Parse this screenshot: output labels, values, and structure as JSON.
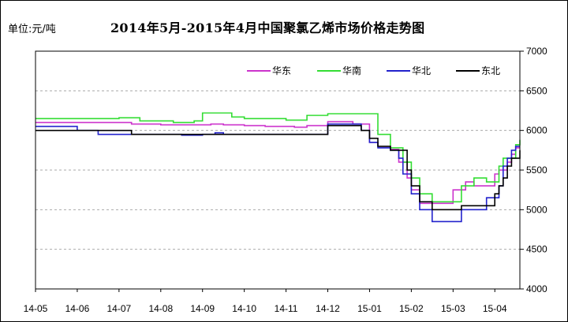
{
  "unit_label": "单位:元/吨",
  "chart_data": {
    "type": "line",
    "title": "2014年5月-2015年4月中国聚氯乙烯市场价格走势图",
    "xlabel": "",
    "ylabel": "",
    "ylim": [
      4000,
      7000
    ],
    "yticks": [
      4000,
      4500,
      5000,
      5500,
      6000,
      6500,
      7000
    ],
    "y_axis_side": "right",
    "x_tick_labels": [
      "14-05",
      "14-06",
      "14-07",
      "14-08",
      "14-09",
      "14-10",
      "14-11",
      "14-12",
      "15-01",
      "15-02",
      "15-03",
      "15-04"
    ],
    "grid": "horizontal",
    "legend_position": "top-right",
    "series": [
      {
        "name": "华东",
        "color": "#cc33cc",
        "x": [
          0,
          0.6,
          0.8,
          1.0,
          1.5,
          2.0,
          2.3,
          2.5,
          3.0,
          3.5,
          4.0,
          4.2,
          4.5,
          5.0,
          5.5,
          6.0,
          6.2,
          6.5,
          7.0,
          7.5,
          7.6,
          7.8,
          8.0,
          8.2,
          8.5,
          8.7,
          8.9,
          9.0,
          9.2,
          9.5,
          9.8,
          10.0,
          10.2,
          10.3,
          10.5,
          10.8,
          11.0,
          11.1,
          11.2,
          11.3,
          11.4,
          11.5,
          11.6
        ],
        "values": [
          6100,
          6100,
          6100,
          6100,
          6100,
          6100,
          6080,
          6080,
          6070,
          6070,
          6070,
          6080,
          6070,
          6060,
          6050,
          6050,
          6040,
          6060,
          6110,
          6110,
          6080,
          6080,
          5850,
          5800,
          5760,
          5600,
          5400,
          5250,
          5080,
          5080,
          5080,
          5250,
          5250,
          5350,
          5300,
          5300,
          5450,
          5500,
          5500,
          5600,
          5700,
          5780,
          5780
        ]
      },
      {
        "name": "华南",
        "color": "#33dd33",
        "x": [
          0,
          0.5,
          1.0,
          1.5,
          2.0,
          2.3,
          2.5,
          3.0,
          3.3,
          3.5,
          3.8,
          4.0,
          4.5,
          4.7,
          5.0,
          5.5,
          6.0,
          6.2,
          6.5,
          7.0,
          7.5,
          7.8,
          8.0,
          8.2,
          8.5,
          8.8,
          9.0,
          9.2,
          9.5,
          9.8,
          10.0,
          10.2,
          10.3,
          10.5,
          10.8,
          11.0,
          11.1,
          11.2,
          11.3,
          11.5,
          11.6
        ],
        "values": [
          6150,
          6150,
          6150,
          6150,
          6160,
          6160,
          6120,
          6120,
          6100,
          6100,
          6120,
          6220,
          6220,
          6170,
          6150,
          6150,
          6130,
          6130,
          6190,
          6210,
          6210,
          6210,
          6210,
          5950,
          5780,
          5600,
          5400,
          5200,
          5100,
          5100,
          5100,
          5300,
          5300,
          5400,
          5350,
          5350,
          5550,
          5650,
          5650,
          5820,
          5880
        ]
      },
      {
        "name": "华北",
        "color": "#2222cc",
        "x": [
          0,
          0.5,
          1.0,
          1.5,
          2.0,
          2.5,
          3.0,
          3.5,
          4.0,
          4.3,
          4.5,
          5.0,
          5.5,
          6.0,
          6.5,
          7.0,
          7.5,
          7.8,
          8.0,
          8.2,
          8.5,
          8.7,
          8.8,
          9.0,
          9.2,
          9.5,
          9.8,
          10.0,
          10.2,
          10.5,
          10.8,
          11.0,
          11.1,
          11.2,
          11.3,
          11.4,
          11.5,
          11.6
        ],
        "values": [
          6050,
          6050,
          6000,
          5950,
          5950,
          5950,
          5950,
          5940,
          5950,
          5970,
          5950,
          5950,
          5950,
          5950,
          5950,
          6080,
          6080,
          6000,
          5850,
          5780,
          5750,
          5650,
          5450,
          5200,
          5000,
          4850,
          4850,
          4850,
          5000,
          5000,
          5150,
          5150,
          5300,
          5550,
          5650,
          5750,
          5800,
          5800
        ]
      },
      {
        "name": "东北",
        "color": "#000000",
        "x": [
          0,
          0.5,
          1.0,
          1.5,
          2.0,
          2.3,
          2.5,
          3.0,
          3.5,
          4.0,
          4.5,
          5.0,
          5.5,
          6.0,
          6.5,
          7.0,
          7.5,
          7.8,
          8.0,
          8.2,
          8.5,
          8.7,
          8.9,
          9.0,
          9.2,
          9.5,
          9.8,
          10.0,
          10.2,
          10.5,
          10.8,
          11.0,
          11.1,
          11.2,
          11.3,
          11.4,
          11.5,
          11.6
        ],
        "values": [
          6000,
          6000,
          6000,
          6000,
          6000,
          5950,
          5950,
          5950,
          5950,
          5950,
          5950,
          5950,
          5950,
          5950,
          5950,
          6060,
          6060,
          6000,
          5900,
          5800,
          5750,
          5750,
          5500,
          5300,
          5100,
          5000,
          5000,
          5000,
          5050,
          5050,
          5050,
          5200,
          5300,
          5400,
          5550,
          5650,
          5650,
          5750
        ]
      }
    ]
  }
}
